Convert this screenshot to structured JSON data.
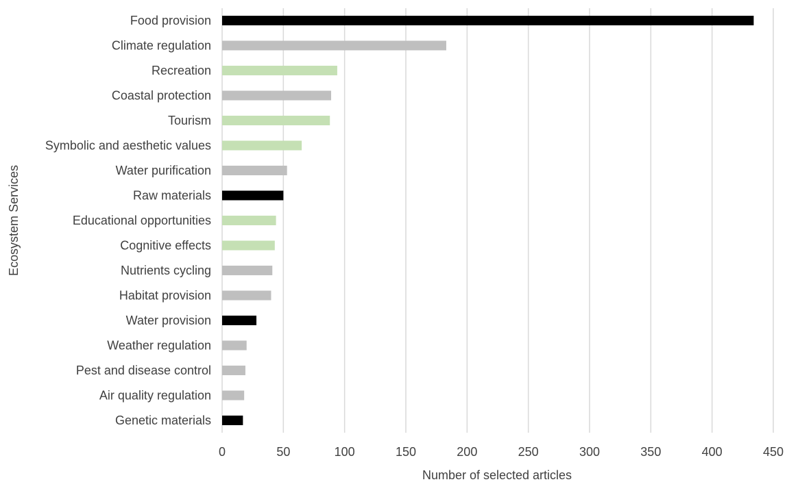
{
  "chart_data": {
    "type": "bar",
    "orientation": "horizontal",
    "title": "",
    "xlabel": "Number of selected articles",
    "ylabel": "Ecosystem Services",
    "xlim": [
      0,
      450
    ],
    "xticks": [
      0,
      50,
      100,
      150,
      200,
      250,
      300,
      350,
      400,
      450
    ],
    "grid": "vertical",
    "legend": "none",
    "categories": [
      "Food provision",
      "Climate regulation",
      "Recreation",
      "Coastal protection",
      "Tourism",
      "Symbolic and aesthetic values",
      "Water purification",
      "Raw materials",
      "Educational opportunities",
      "Cognitive effects",
      "Nutrients cycling",
      "Habitat provision",
      "Water provision",
      "Weather regulation",
      "Pest and disease control",
      "Air quality regulation",
      "Genetic materials"
    ],
    "values": [
      434,
      183,
      94,
      89,
      88,
      65,
      53,
      50,
      44,
      43,
      41,
      40,
      28,
      20,
      19,
      18,
      17
    ],
    "bar_colors": [
      "#000000",
      "#bfbfbf",
      "#c5e0b4",
      "#bfbfbf",
      "#c5e0b4",
      "#c5e0b4",
      "#bfbfbf",
      "#000000",
      "#c5e0b4",
      "#c5e0b4",
      "#bfbfbf",
      "#bfbfbf",
      "#000000",
      "#bfbfbf",
      "#bfbfbf",
      "#bfbfbf",
      "#000000"
    ]
  }
}
